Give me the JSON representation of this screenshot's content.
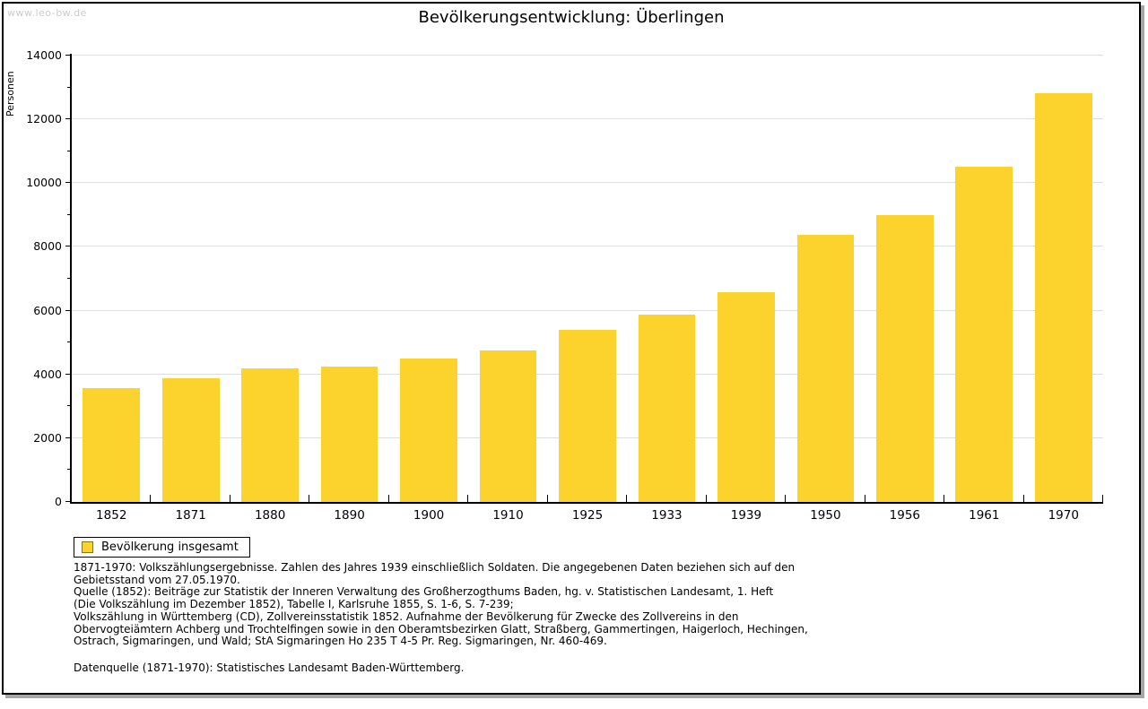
{
  "watermark": "www.leo-bw.de",
  "title": "Bevölkerungsentwicklung: Überlingen",
  "chart_data": {
    "type": "bar",
    "title": "Bevölkerungsentwicklung: Überlingen",
    "xlabel": "",
    "ylabel": "Personen",
    "categories": [
      "1852",
      "1871",
      "1880",
      "1890",
      "1900",
      "1910",
      "1925",
      "1933",
      "1939",
      "1950",
      "1956",
      "1961",
      "1970"
    ],
    "values": [
      3570,
      3870,
      4200,
      4250,
      4500,
      4750,
      5400,
      5880,
      6570,
      8370,
      9010,
      10520,
      12830
    ],
    "series": [
      {
        "name": "Bevölkerung insgesamt",
        "values": [
          3570,
          3870,
          4200,
          4250,
          4500,
          4750,
          5400,
          5880,
          6570,
          8370,
          9010,
          10520,
          12830
        ]
      }
    ],
    "ylim": [
      0,
      14000
    ],
    "y_tick_step": 2000,
    "y_minor_tick_step": 1000,
    "grid": true,
    "legend_position": "bottom-left",
    "bar_color": "#fcd32d"
  },
  "legend": {
    "label": "Bevölkerung insgesamt"
  },
  "footnotes": [
    "1871-1970: Volkszählungsergebnisse. Zahlen des Jahres 1939 einschließlich Soldaten. Die angegebenen Daten beziehen sich auf den",
    "Gebietsstand vom 27.05.1970.",
    "Quelle (1852): Beiträge zur Statistik der Inneren Verwaltung des Großherzogthums Baden, hg. v. Statistischen Landesamt, 1. Heft",
    "(Die Volkszählung im Dezember 1852), Tabelle I, Karlsruhe 1855, S. 1-6, S. 7-239;",
    "Volkszählung in Württemberg (CD), Zollvereinsstatistik 1852. Aufnahme der Bevölkerung für Zwecke des Zollvereins in den",
    "Obervogteiämtern Achberg und Trochtelfingen sowie in den Oberamtsbezirken Glatt, Straßberg, Gammertingen, Haigerloch, Hechingen,",
    "Ostrach, Sigmaringen, und Wald; StA Sigmaringen Ho 235 T 4-5 Pr. Reg. Sigmaringen, Nr. 460-469."
  ],
  "datasource": "Datenquelle (1871-1970): Statistisches Landesamt Baden-Württemberg.",
  "colors": {
    "bar": "#fcd32d",
    "swatch_border": "#857708",
    "grid": "#dedede",
    "watermark": "#cccccc",
    "shadow": "#a6a6a6",
    "text": "#000000"
  }
}
